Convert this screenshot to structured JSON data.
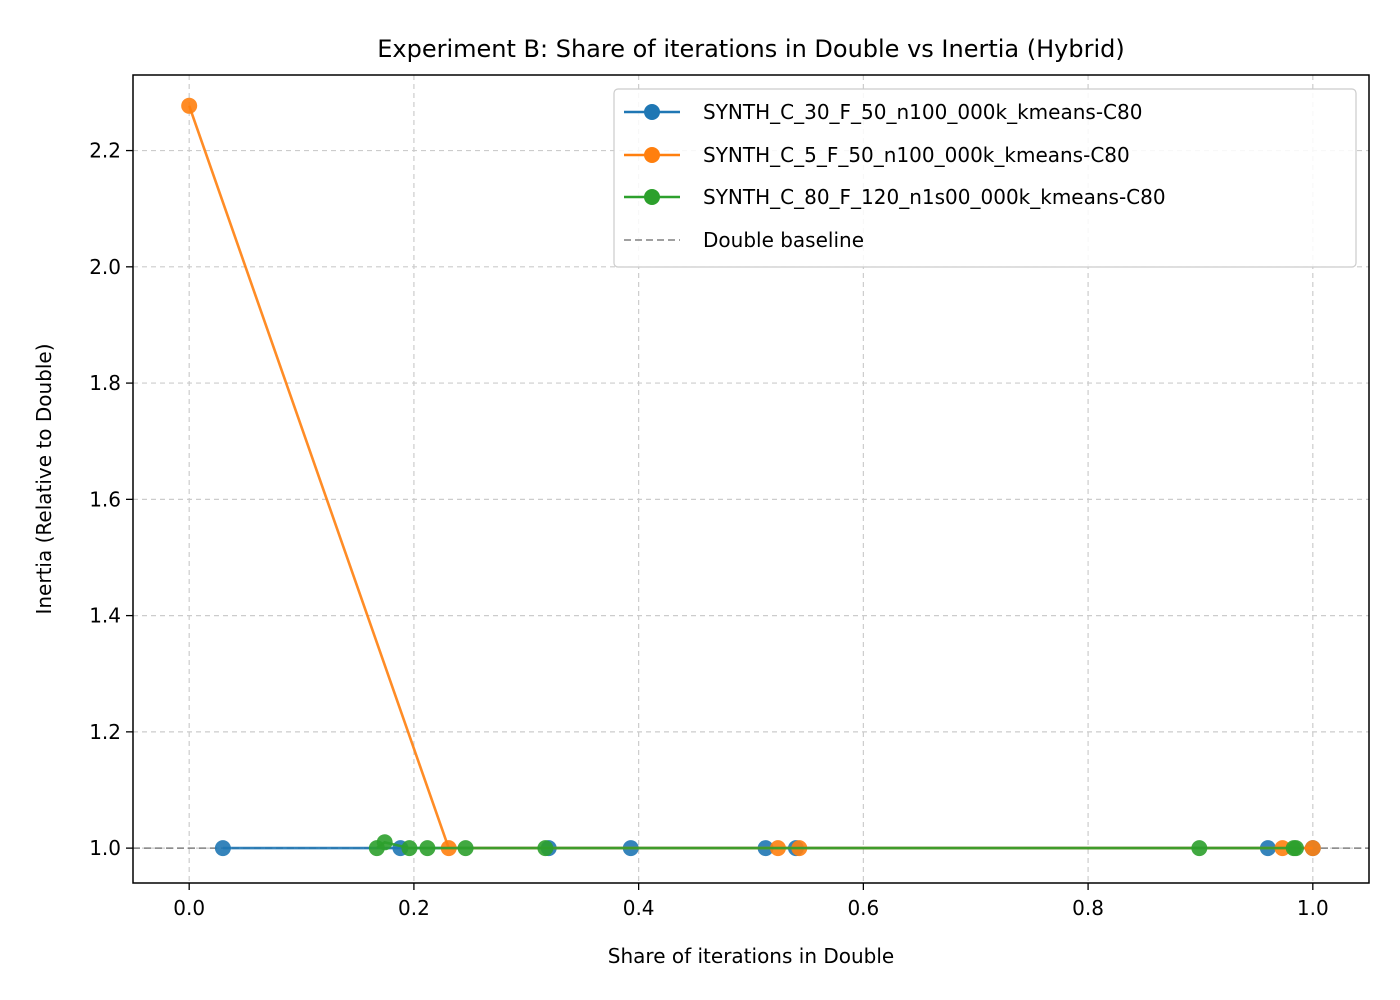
{
  "chart_data": {
    "type": "line",
    "title": "Experiment B: Share of iterations in Double vs Inertia (Hybrid)",
    "xlabel": "Share of iterations in Double",
    "ylabel": "Inertia (Relative to Double)",
    "xlim": [
      -0.05,
      1.05
    ],
    "ylim": [
      0.94,
      2.33
    ],
    "xticks": [
      0.0,
      0.2,
      0.4,
      0.6,
      0.8,
      1.0
    ],
    "xtick_labels": [
      "0.0",
      "0.2",
      "0.4",
      "0.6",
      "0.8",
      "1.0"
    ],
    "yticks": [
      1.0,
      1.2,
      1.4,
      1.6,
      1.8,
      2.0,
      2.2
    ],
    "ytick_labels": [
      "1.0",
      "1.2",
      "1.4",
      "1.6",
      "1.8",
      "2.0",
      "2.2"
    ],
    "grid": true,
    "legend_position": "top-right",
    "series": [
      {
        "name": "SYNTH_C_30_F_50_n100_000k_kmeans-C80",
        "color": "#1f77b4",
        "x": [
          0.03,
          0.188,
          0.32,
          0.393,
          0.513,
          0.54,
          0.96,
          1.0
        ],
        "y": [
          1.0,
          1.0,
          1.0,
          1.0,
          1.0,
          1.0,
          1.0,
          1.0
        ]
      },
      {
        "name": "SYNTH_C_5_F_50_n100_000k_kmeans-C80",
        "color": "#ff7f0e",
        "x": [
          0.0,
          0.231,
          0.524,
          0.543,
          0.973,
          1.0
        ],
        "y": [
          2.277,
          1.0,
          1.0,
          1.0,
          1.0,
          1.0
        ]
      },
      {
        "name": "SYNTH_C_80_F_120_n1s00_000k_kmeans-C80",
        "color": "#2ca02c",
        "x": [
          0.167,
          0.174,
          0.196,
          0.212,
          0.246,
          0.317,
          0.899,
          0.983,
          0.985
        ],
        "y": [
          1.0,
          1.01,
          1.0,
          1.0,
          1.0,
          1.0,
          1.0,
          1.0,
          1.0
        ]
      }
    ],
    "baseline": {
      "name": "Double baseline",
      "y": 1.0,
      "color": "#808080",
      "style": "dashed"
    }
  }
}
